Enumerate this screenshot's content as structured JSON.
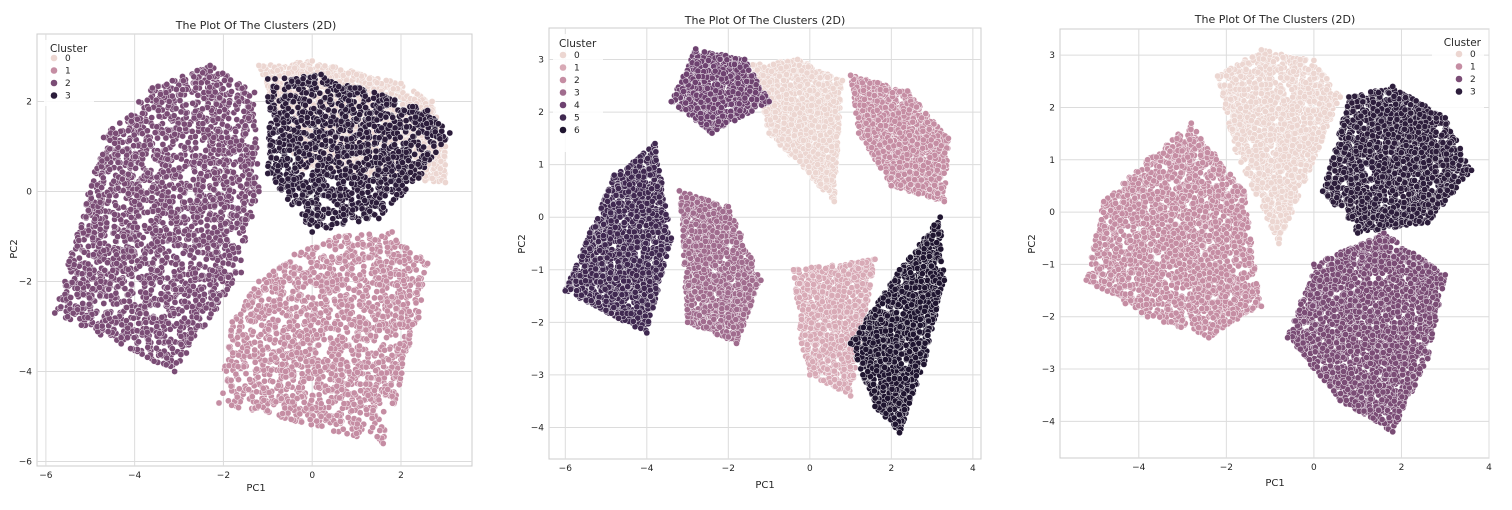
{
  "figure": {
    "panels": [
      {
        "title": "The Plot Of The Clusters (2D)",
        "xlabel": "PC1",
        "ylabel": "PC2",
        "xticks": [
          -6,
          -4,
          -2,
          0,
          2
        ],
        "yticks": [
          -6,
          -4,
          -2,
          0,
          2
        ],
        "legend_title": "Cluster",
        "legend_loc": "upper-left"
      },
      {
        "title": "The Plot Of The Clusters (2D)",
        "xlabel": "PC1",
        "ylabel": "PC2",
        "xticks": [
          -6,
          -4,
          -2,
          0,
          2,
          4
        ],
        "yticks": [
          -4,
          -3,
          -2,
          -1,
          0,
          1,
          2,
          3
        ],
        "legend_title": "Cluster",
        "legend_loc": "upper-left"
      },
      {
        "title": "The Plot Of The Clusters (2D)",
        "xlabel": "PC1",
        "ylabel": "PC2",
        "xticks": [
          -4,
          -2,
          0,
          2,
          4
        ],
        "yticks": [
          -4,
          -3,
          -2,
          -1,
          0,
          1,
          2,
          3
        ],
        "legend_title": "Cluster",
        "legend_loc": "upper-right"
      }
    ]
  },
  "chart_data": [
    {
      "type": "scatter",
      "title": "The Plot Of The Clusters (2D)",
      "xlabel": "PC1",
      "ylabel": "PC2",
      "xlim": [
        -6.2,
        3.6
      ],
      "ylim": [
        -6.1,
        3.5
      ],
      "grid": true,
      "legend": {
        "title": "Cluster",
        "placement": "upper-left",
        "entries": [
          "0",
          "1",
          "2",
          "3"
        ]
      },
      "series": [
        {
          "name": "0",
          "color": "#ecd6d1",
          "approx_center": [
            1.0,
            1.2
          ],
          "approx_x_range": [
            -1.5,
            3.2
          ],
          "approx_y_range": [
            -0.5,
            3.0
          ],
          "points": [
            [
              -1.2,
              2.8
            ],
            [
              0.0,
              2.9
            ],
            [
              1.0,
              2.6
            ],
            [
              2.0,
              2.4
            ],
            [
              2.7,
              2.0
            ],
            [
              3.0,
              1.0
            ],
            [
              3.0,
              0.2
            ],
            [
              2.5,
              1.5
            ],
            [
              1.6,
              0.8
            ],
            [
              0.4,
              1.6
            ],
            [
              -0.8,
              2.2
            ],
            [
              -0.3,
              0.5
            ]
          ]
        },
        {
          "name": "1",
          "color": "#c58da3",
          "approx_center": [
            0.5,
            -2.6
          ],
          "approx_x_range": [
            -2.2,
            3.0
          ],
          "approx_y_range": [
            -5.6,
            -0.6
          ],
          "points": [
            [
              -1.8,
              -2.9
            ],
            [
              -1.2,
              -2.0
            ],
            [
              -0.4,
              -1.4
            ],
            [
              0.6,
              -1.0
            ],
            [
              1.8,
              -0.9
            ],
            [
              2.6,
              -1.6
            ],
            [
              2.4,
              -2.8
            ],
            [
              1.5,
              -3.8
            ],
            [
              0.6,
              -4.2
            ],
            [
              -0.6,
              -4.0
            ],
            [
              1.6,
              -5.6
            ],
            [
              0.2,
              -5.0
            ],
            [
              -2.1,
              -4.7
            ]
          ]
        },
        {
          "name": "2",
          "color": "#7a4c75",
          "approx_center": [
            -3.0,
            0.2
          ],
          "approx_x_range": [
            -5.9,
            -1.1
          ],
          "approx_y_range": [
            -4.2,
            2.9
          ],
          "points": [
            [
              -5.8,
              -2.7
            ],
            [
              -5.2,
              -0.8
            ],
            [
              -4.7,
              1.2
            ],
            [
              -3.6,
              2.3
            ],
            [
              -2.3,
              2.8
            ],
            [
              -1.3,
              2.2
            ],
            [
              -1.2,
              0.0
            ],
            [
              -1.6,
              -1.8
            ],
            [
              -2.6,
              -2.8
            ],
            [
              -3.5,
              -3.0
            ],
            [
              -4.4,
              -2.5
            ],
            [
              -3.1,
              -4.0
            ]
          ]
        },
        {
          "name": "3",
          "color": "#2c1d3b",
          "approx_center": [
            0.9,
            1.0
          ],
          "approx_x_range": [
            -1.3,
            3.2
          ],
          "approx_y_range": [
            -1.0,
            2.9
          ],
          "points": [
            [
              -1.0,
              2.5
            ],
            [
              0.2,
              2.6
            ],
            [
              1.4,
              2.2
            ],
            [
              2.6,
              1.8
            ],
            [
              3.1,
              1.3
            ],
            [
              2.4,
              0.3
            ],
            [
              1.5,
              -0.6
            ],
            [
              0.0,
              -0.9
            ],
            [
              -1.0,
              0.4
            ],
            [
              0.8,
              1.0
            ]
          ]
        }
      ]
    },
    {
      "type": "scatter",
      "title": "The Plot Of The Clusters (2D)",
      "xlabel": "PC1",
      "ylabel": "PC2",
      "xlim": [
        -6.4,
        4.2
      ],
      "ylim": [
        -4.6,
        3.6
      ],
      "grid": true,
      "legend": {
        "title": "Cluster",
        "placement": "upper-left",
        "entries": [
          "0",
          "1",
          "2",
          "3",
          "4",
          "5",
          "6"
        ]
      },
      "series": [
        {
          "name": "0",
          "color": "#ecd6d1",
          "approx_center": [
            0.0,
            1.6
          ],
          "points": [
            [
              -1.4,
              2.9
            ],
            [
              -0.3,
              3.0
            ],
            [
              0.8,
              2.6
            ],
            [
              0.2,
              1.2
            ],
            [
              -1.0,
              1.6
            ],
            [
              0.6,
              0.3
            ]
          ]
        },
        {
          "name": "1",
          "color": "#d8aab6",
          "approx_center": [
            0.5,
            -2.0
          ],
          "points": [
            [
              -0.4,
              -1.0
            ],
            [
              0.6,
              -1.8
            ],
            [
              1.0,
              -3.4
            ],
            [
              0.0,
              -3.0
            ],
            [
              1.6,
              -0.8
            ],
            [
              -0.2,
              -2.4
            ]
          ]
        },
        {
          "name": "2",
          "color": "#c58da3",
          "approx_center": [
            2.2,
            1.4
          ],
          "points": [
            [
              1.0,
              2.7
            ],
            [
              2.4,
              2.4
            ],
            [
              3.4,
              1.5
            ],
            [
              3.3,
              0.3
            ],
            [
              2.0,
              0.6
            ],
            [
              1.2,
              1.6
            ]
          ]
        },
        {
          "name": "3",
          "color": "#a06c8e",
          "approx_center": [
            -2.2,
            -1.0
          ],
          "points": [
            [
              -3.2,
              0.5
            ],
            [
              -2.0,
              0.2
            ],
            [
              -1.2,
              -1.2
            ],
            [
              -1.8,
              -2.4
            ],
            [
              -3.0,
              -2.0
            ],
            [
              -2.6,
              -1.0
            ]
          ]
        },
        {
          "name": "4",
          "color": "#6e4270",
          "approx_center": [
            -2.0,
            2.2
          ],
          "points": [
            [
              -2.8,
              3.2
            ],
            [
              -1.6,
              3.0
            ],
            [
              -1.0,
              2.2
            ],
            [
              -2.4,
              1.6
            ],
            [
              -3.4,
              2.2
            ]
          ]
        },
        {
          "name": "5",
          "color": "#3f2850",
          "approx_center": [
            -4.3,
            -0.6
          ],
          "points": [
            [
              -6.0,
              -1.4
            ],
            [
              -5.4,
              -0.6
            ],
            [
              -4.8,
              0.8
            ],
            [
              -3.8,
              1.4
            ],
            [
              -3.4,
              -0.4
            ],
            [
              -4.0,
              -2.2
            ],
            [
              -5.0,
              -1.6
            ]
          ]
        },
        {
          "name": "6",
          "color": "#1f1530",
          "approx_center": [
            2.2,
            -2.0
          ],
          "points": [
            [
              1.0,
              -2.4
            ],
            [
              1.6,
              -3.6
            ],
            [
              2.2,
              -4.1
            ],
            [
              2.8,
              -2.8
            ],
            [
              3.3,
              -1.2
            ],
            [
              3.2,
              0.0
            ],
            [
              2.2,
              -1.0
            ]
          ]
        }
      ]
    },
    {
      "type": "scatter",
      "title": "The Plot Of The Clusters (2D)",
      "xlabel": "PC1",
      "ylabel": "PC2",
      "xlim": [
        -5.8,
        4.0
      ],
      "ylim": [
        -4.7,
        3.5
      ],
      "grid": true,
      "legend": {
        "title": "Cluster",
        "placement": "upper-right",
        "entries": [
          "0",
          "1",
          "2",
          "3"
        ]
      },
      "series": [
        {
          "name": "0",
          "color": "#ecd6d1",
          "approx_center": [
            -0.8,
            1.7
          ],
          "points": [
            [
              -2.2,
              2.6
            ],
            [
              -1.2,
              3.1
            ],
            [
              0.0,
              2.9
            ],
            [
              0.6,
              2.2
            ],
            [
              -0.2,
              0.8
            ],
            [
              -0.8,
              -0.6
            ],
            [
              -1.8,
              1.2
            ]
          ]
        },
        {
          "name": "1",
          "color": "#c58da3",
          "approx_center": [
            -3.0,
            -0.7
          ],
          "points": [
            [
              -5.2,
              -1.3
            ],
            [
              -4.8,
              0.2
            ],
            [
              -3.8,
              1.0
            ],
            [
              -2.8,
              1.7
            ],
            [
              -1.6,
              0.4
            ],
            [
              -1.2,
              -1.8
            ],
            [
              -2.4,
              -2.4
            ],
            [
              -3.8,
              -2.0
            ]
          ]
        },
        {
          "name": "2",
          "color": "#7a4c75",
          "approx_center": [
            1.4,
            -2.1
          ],
          "points": [
            [
              -0.6,
              -2.4
            ],
            [
              0.0,
              -1.0
            ],
            [
              1.6,
              -0.4
            ],
            [
              3.0,
              -1.2
            ],
            [
              2.6,
              -2.8
            ],
            [
              1.8,
              -4.2
            ],
            [
              0.6,
              -3.6
            ]
          ]
        },
        {
          "name": "3",
          "color": "#2c1d3b",
          "approx_center": [
            1.8,
            1.2
          ],
          "points": [
            [
              0.2,
              0.4
            ],
            [
              0.8,
              2.2
            ],
            [
              1.8,
              2.4
            ],
            [
              3.0,
              1.8
            ],
            [
              3.6,
              0.8
            ],
            [
              2.6,
              -0.2
            ],
            [
              1.0,
              -0.4
            ]
          ]
        }
      ]
    }
  ]
}
